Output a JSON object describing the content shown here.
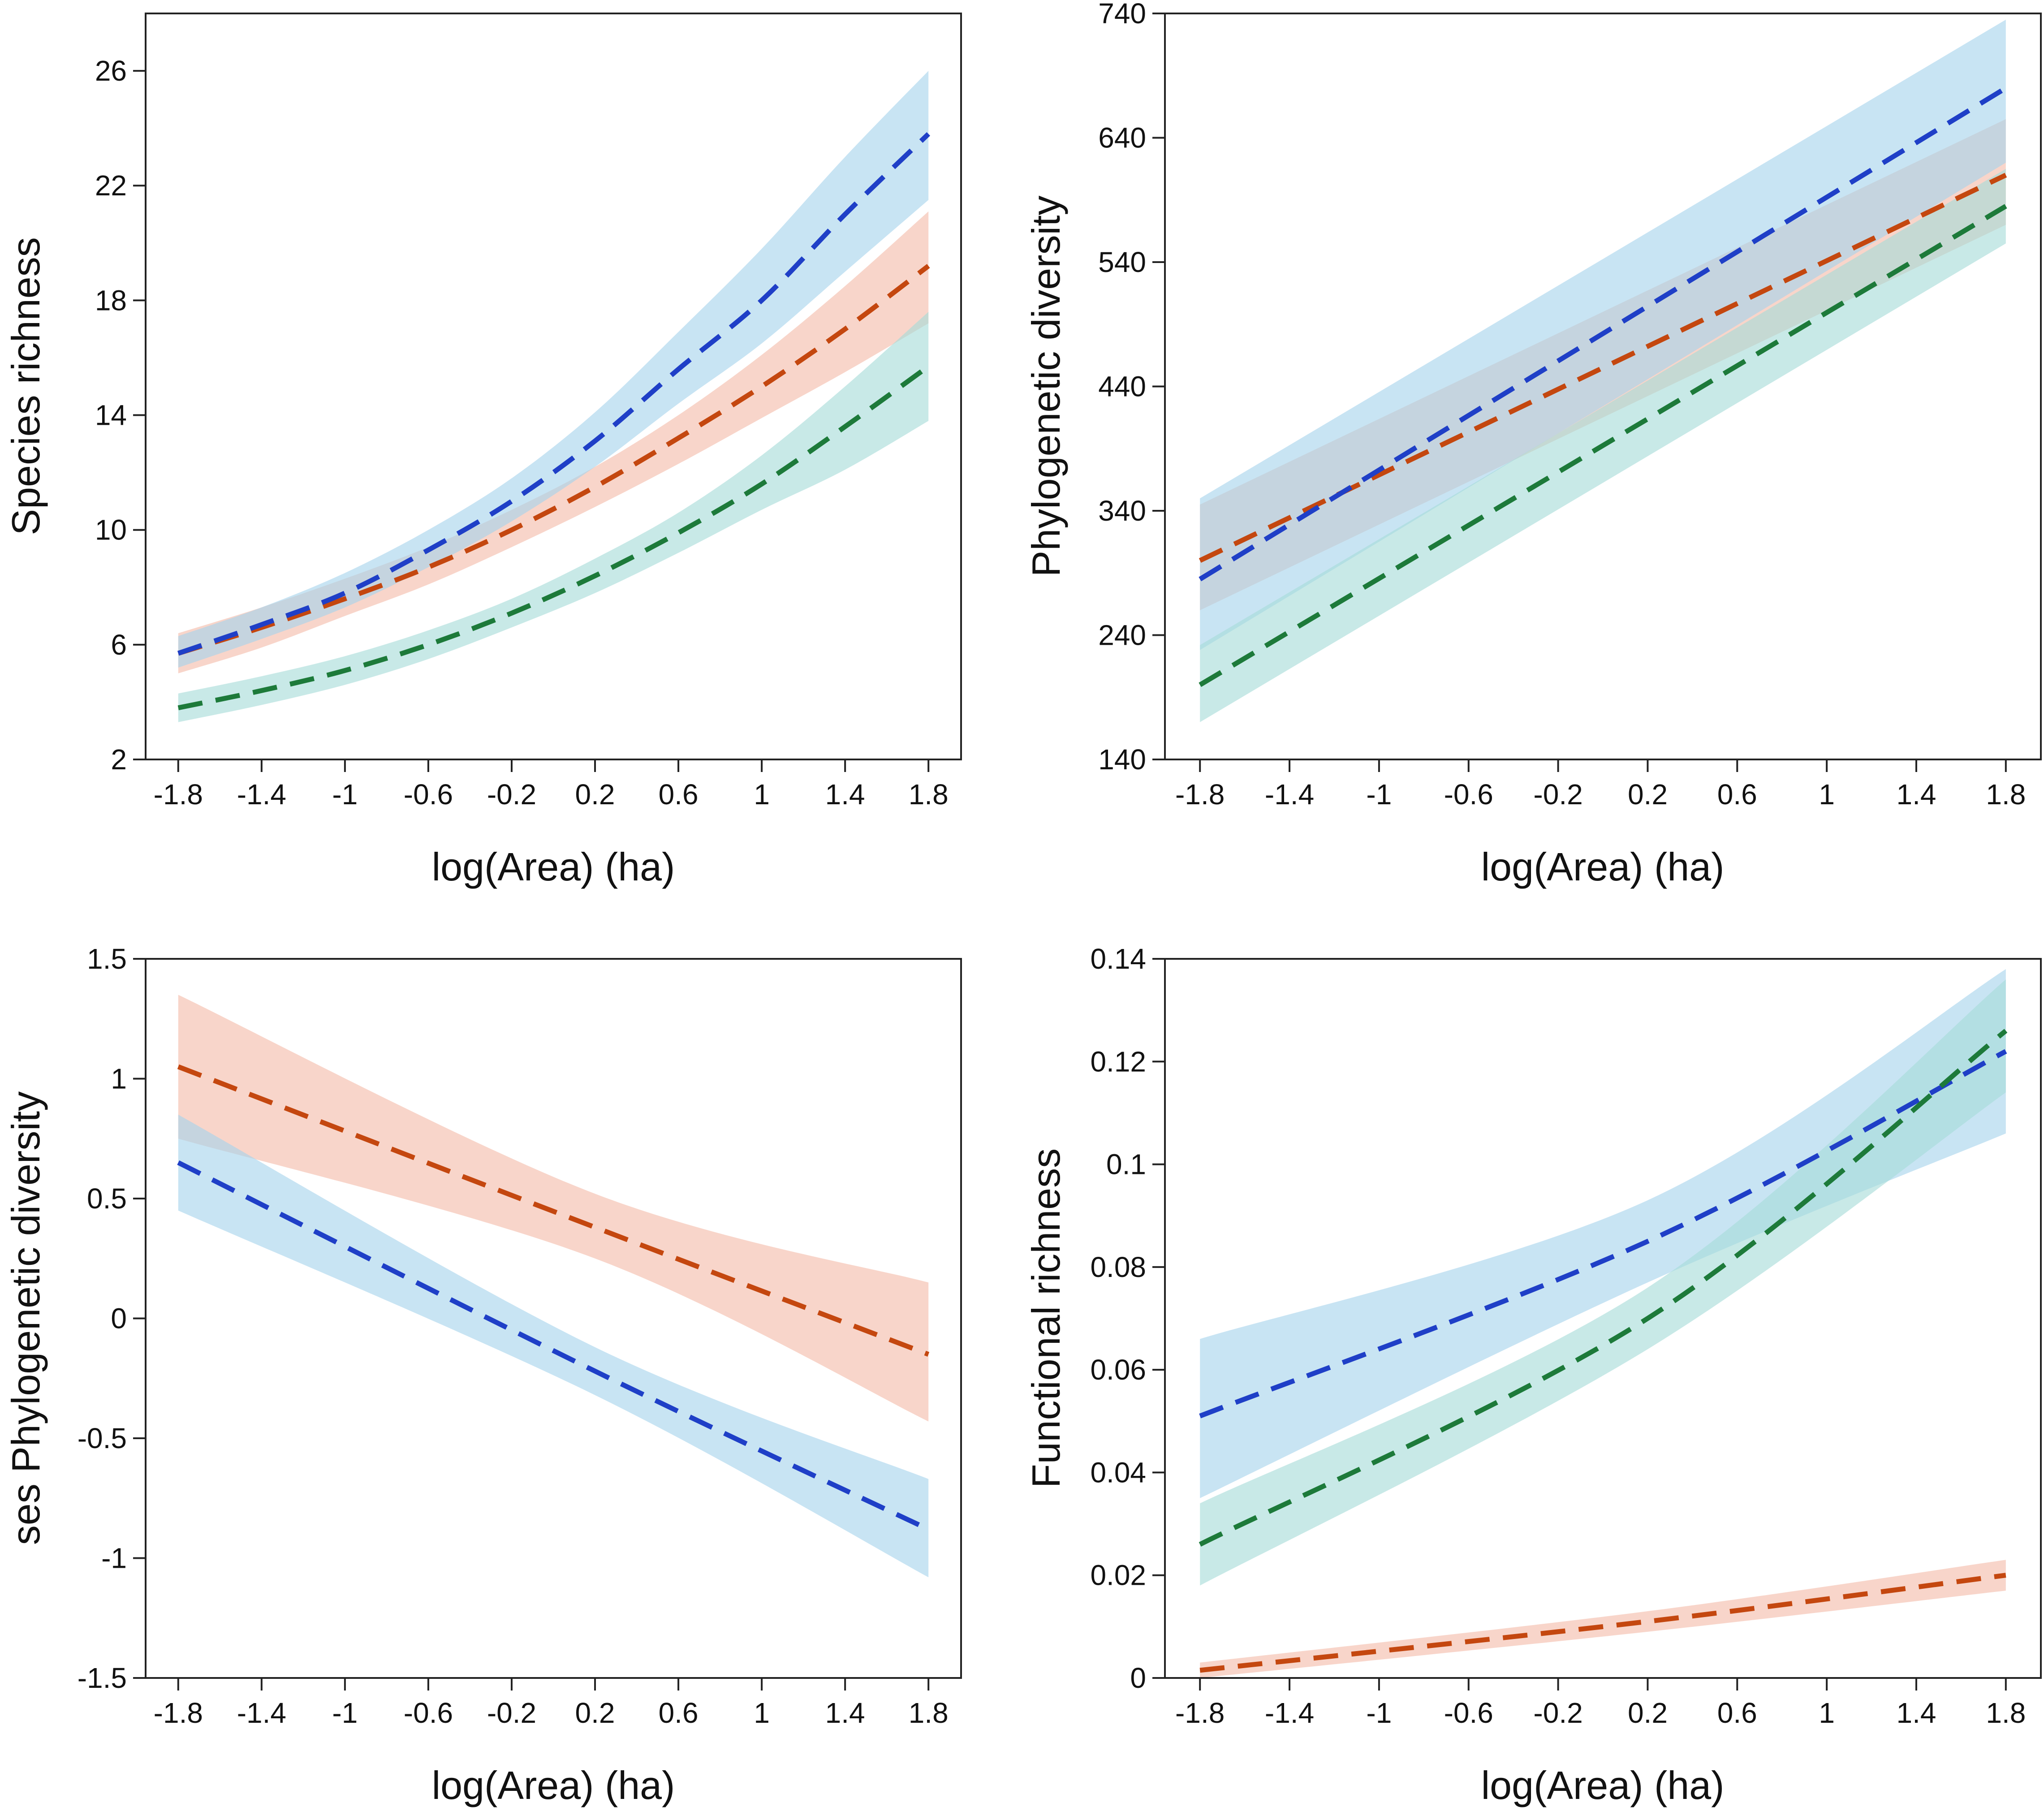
{
  "colors": {
    "blue": "#1f3fc7",
    "orange": "#c4470f",
    "green": "#1d7a3a",
    "blue_band": "#a6d3ec",
    "orange_band": "#f4bba9",
    "green_band": "#a7dbd9"
  },
  "chart_data": [
    {
      "type": "line",
      "panel": "top-left",
      "title": "",
      "xlabel": "log(Area) (ha)",
      "ylabel": "Species richness",
      "xlim": [
        -1.8,
        1.8
      ],
      "ylim": [
        2,
        28
      ],
      "xticks": [
        -1.8,
        -1.4,
        -1,
        -0.6,
        -0.2,
        0.2,
        0.6,
        1,
        1.4,
        1.8
      ],
      "xtick_labels": [
        "-1.8",
        "-1.4",
        "-1",
        "-0.6",
        "-0.2",
        "0.2",
        "0.6",
        "1",
        "1.4",
        "1.8"
      ],
      "yticks": [
        2,
        6,
        10,
        14,
        18,
        22,
        26
      ],
      "ytick_labels": [
        "2",
        "6",
        "10",
        "14",
        "18",
        "22",
        "26"
      ],
      "x": [
        -1.8,
        -1.4,
        -1,
        -0.6,
        -0.2,
        0.2,
        0.6,
        1,
        1.4,
        1.8
      ],
      "series": [
        {
          "name": "orange",
          "color": "#c4470f",
          "band_color": "#f4bba9",
          "values": [
            5.7,
            6.6,
            7.6,
            8.7,
            10.0,
            11.5,
            13.2,
            15.0,
            17.0,
            19.2
          ],
          "lower": [
            5.0,
            5.9,
            7.0,
            8.1,
            9.4,
            10.8,
            12.3,
            13.9,
            15.5,
            17.2
          ],
          "upper": [
            6.4,
            7.3,
            8.3,
            9.4,
            10.7,
            12.2,
            14.0,
            16.1,
            18.5,
            21.1
          ]
        },
        {
          "name": "blue",
          "color": "#1f3fc7",
          "band_color": "#a6d3ec",
          "values": [
            5.7,
            6.7,
            7.8,
            9.3,
            11.0,
            13.1,
            15.6,
            18.0,
            21.0,
            23.8
          ],
          "lower": [
            5.2,
            6.2,
            7.3,
            8.7,
            10.3,
            12.2,
            14.4,
            16.5,
            19.0,
            21.5
          ],
          "upper": [
            6.3,
            7.3,
            8.5,
            10.0,
            11.8,
            14.1,
            16.9,
            19.8,
            23.0,
            26.0
          ]
        },
        {
          "name": "green",
          "color": "#1d7a3a",
          "band_color": "#a7dbd9",
          "values": [
            3.8,
            4.4,
            5.1,
            6.0,
            7.1,
            8.4,
            9.9,
            11.6,
            13.6,
            15.7
          ],
          "lower": [
            3.3,
            3.9,
            4.6,
            5.5,
            6.6,
            7.8,
            9.2,
            10.7,
            12.1,
            13.8
          ],
          "upper": [
            4.3,
            4.9,
            5.6,
            6.5,
            7.6,
            9.0,
            10.6,
            12.6,
            15.0,
            17.6
          ]
        }
      ]
    },
    {
      "type": "line",
      "panel": "top-right",
      "title": "",
      "xlabel": "log(Area) (ha)",
      "ylabel": "Phylogenetic diversity",
      "xlim": [
        -1.8,
        1.8
      ],
      "ylim": [
        140,
        740
      ],
      "xticks": [
        -1.8,
        -1.4,
        -1,
        -0.6,
        -0.2,
        0.2,
        0.6,
        1,
        1.4,
        1.8
      ],
      "xtick_labels": [
        "-1.8",
        "-1.4",
        "-1",
        "-0.6",
        "-0.2",
        "0.2",
        "0.6",
        "1",
        "1.4",
        "1.8"
      ],
      "yticks": [
        140,
        240,
        340,
        440,
        540,
        640,
        740
      ],
      "ytick_labels": [
        "140",
        "240",
        "340",
        "440",
        "540",
        "640",
        "740"
      ],
      "x": [
        -1.8,
        1.8
      ],
      "series": [
        {
          "name": "orange",
          "color": "#c4470f",
          "band_color": "#f4bba9",
          "values": [
            300,
            610
          ],
          "lower": [
            260,
            570
          ],
          "upper": [
            345,
            655
          ]
        },
        {
          "name": "blue",
          "color": "#1f3fc7",
          "band_color": "#a6d3ec",
          "values": [
            285,
            680
          ],
          "lower": [
            228,
            620
          ],
          "upper": [
            350,
            735
          ]
        },
        {
          "name": "green",
          "color": "#1d7a3a",
          "band_color": "#a7dbd9",
          "values": [
            200,
            585
          ],
          "lower": [
            170,
            555
          ],
          "upper": [
            232,
            615
          ]
        }
      ]
    },
    {
      "type": "line",
      "panel": "bottom-left",
      "title": "",
      "xlabel": "log(Area) (ha)",
      "ylabel": "ses Phylogenetic diversity",
      "xlim": [
        -1.8,
        1.8
      ],
      "ylim": [
        -1.5,
        1.5
      ],
      "xticks": [
        -1.8,
        -1.4,
        -1,
        -0.6,
        -0.2,
        0.2,
        0.6,
        1,
        1.4,
        1.8
      ],
      "xtick_labels": [
        "-1.8",
        "-1.4",
        "-1",
        "-0.6",
        "-0.2",
        "0.2",
        "0.6",
        "1",
        "1.4",
        "1.8"
      ],
      "yticks": [
        -1.5,
        -1,
        -0.5,
        0,
        0.5,
        1,
        1.5
      ],
      "ytick_labels": [
        "-1.5",
        "-1",
        "-0.5",
        "0",
        "0.5",
        "1",
        "1.5"
      ],
      "x": [
        -1.8,
        0.2,
        1.8
      ],
      "series": [
        {
          "name": "orange",
          "color": "#c4470f",
          "band_color": "#f4bba9",
          "values": [
            1.05,
            0.38,
            -0.15
          ],
          "lower": [
            0.75,
            0.25,
            -0.43
          ],
          "upper": [
            1.35,
            0.52,
            0.15
          ]
        },
        {
          "name": "blue",
          "color": "#1f3fc7",
          "band_color": "#a6d3ec",
          "values": [
            0.65,
            -0.22,
            -0.88
          ],
          "lower": [
            0.45,
            -0.32,
            -1.08
          ],
          "upper": [
            0.85,
            -0.12,
            -0.67
          ]
        }
      ]
    },
    {
      "type": "line",
      "panel": "bottom-right",
      "title": "",
      "xlabel": "log(Area) (ha)",
      "ylabel": "Functional richness",
      "xlim": [
        -1.8,
        1.8
      ],
      "ylim": [
        0,
        0.14
      ],
      "xticks": [
        -1.8,
        -1.4,
        -1,
        -0.6,
        -0.2,
        0.2,
        0.6,
        1,
        1.4,
        1.8
      ],
      "xtick_labels": [
        "-1.8",
        "-1.4",
        "-1",
        "-0.6",
        "-0.2",
        "0.2",
        "0.6",
        "1",
        "1.4",
        "1.8"
      ],
      "yticks": [
        0,
        0.02,
        0.04,
        0.06,
        0.08,
        0.1,
        0.12,
        0.14
      ],
      "ytick_labels": [
        "0",
        "0.02",
        "0.04",
        "0.06",
        "0.08",
        "0.1",
        "0.12",
        "0.14"
      ],
      "x": [
        -1.8,
        0.2,
        1.8
      ],
      "series": [
        {
          "name": "blue",
          "color": "#1f3fc7",
          "band_color": "#a6d3ec",
          "values": [
            0.051,
            0.085,
            0.122
          ],
          "lower": [
            0.035,
            0.077,
            0.106
          ],
          "upper": [
            0.066,
            0.093,
            0.138
          ]
        },
        {
          "name": "green",
          "color": "#1d7a3a",
          "band_color": "#a7dbd9",
          "values": [
            0.026,
            0.07,
            0.126
          ],
          "lower": [
            0.018,
            0.064,
            0.114
          ],
          "upper": [
            0.034,
            0.076,
            0.136
          ]
        },
        {
          "name": "orange",
          "color": "#c4470f",
          "band_color": "#f4bba9",
          "values": [
            0.0015,
            0.011,
            0.02
          ],
          "lower": [
            0.0,
            0.009,
            0.017
          ],
          "upper": [
            0.003,
            0.013,
            0.023
          ]
        }
      ]
    }
  ]
}
